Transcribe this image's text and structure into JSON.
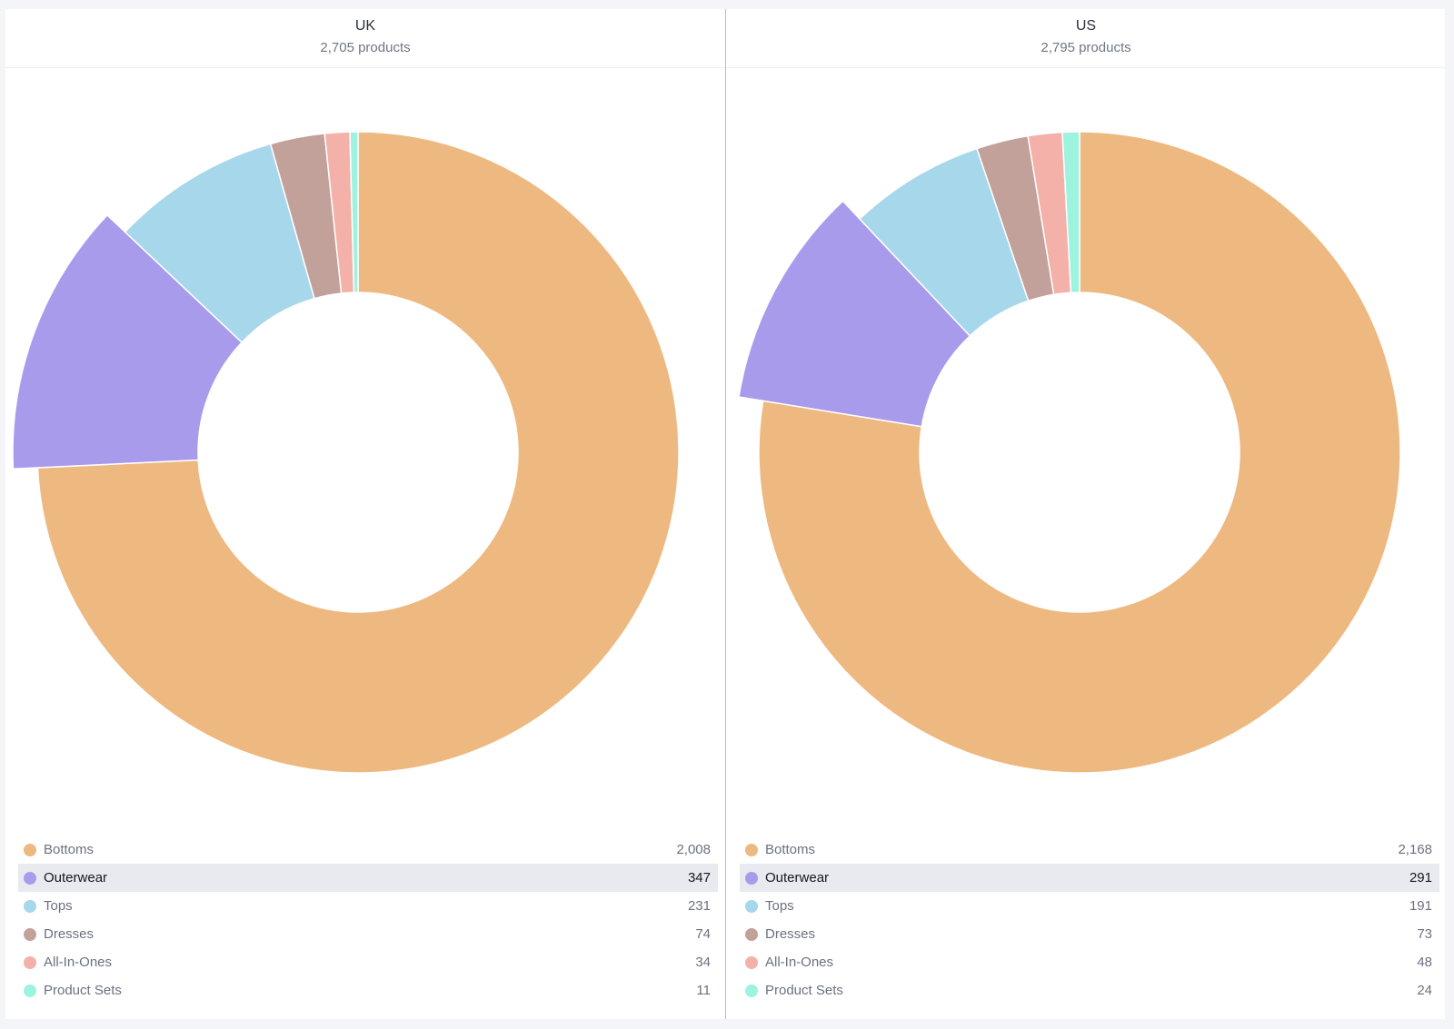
{
  "chart_data": [
    {
      "type": "pie",
      "title": "UK",
      "subtitle": "2,705 products",
      "categories": [
        "Bottoms",
        "Outerwear",
        "Tops",
        "Dresses",
        "All-In-Ones",
        "Product Sets"
      ],
      "values": [
        2008,
        347,
        231,
        74,
        34,
        11
      ],
      "value_labels": [
        "2,008",
        "347",
        "231",
        "74",
        "34",
        "11"
      ],
      "colors": [
        "#eeb980",
        "#a99bec",
        "#a7d7ea",
        "#c3a19b",
        "#f3b1a9",
        "#9ef3df"
      ],
      "highlighted": "Outerwear",
      "legend": "bottom"
    },
    {
      "type": "pie",
      "title": "US",
      "subtitle": "2,795 products",
      "categories": [
        "Bottoms",
        "Outerwear",
        "Tops",
        "Dresses",
        "All-In-Ones",
        "Product Sets"
      ],
      "values": [
        2168,
        291,
        191,
        73,
        48,
        24
      ],
      "value_labels": [
        "2,168",
        "291",
        "191",
        "73",
        "48",
        "24"
      ],
      "colors": [
        "#eeb980",
        "#a99bec",
        "#a7d7ea",
        "#c3a19b",
        "#f3b1a9",
        "#9ef3df"
      ],
      "highlighted": "Outerwear",
      "legend": "bottom"
    }
  ]
}
